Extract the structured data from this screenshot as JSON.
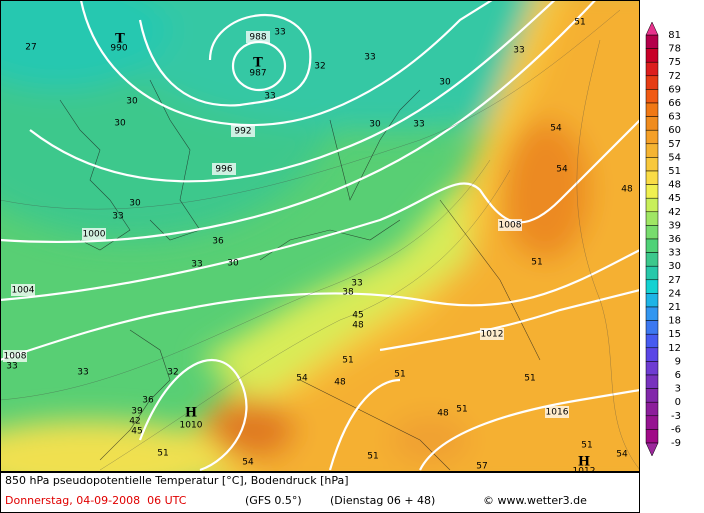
{
  "pressure_centers": [
    {
      "symbol": "T",
      "value": "990"
    },
    {
      "symbol": "T",
      "value": "987"
    },
    {
      "symbol": "H",
      "value": "1010"
    },
    {
      "symbol": "H",
      "value": "1012"
    }
  ],
  "isobar_labels": [
    "988",
    "992",
    "996",
    "1000",
    "1004",
    "1008",
    "1008",
    "1012",
    "1016"
  ],
  "contour_labels": [
    "27",
    "33",
    "33",
    "33",
    "33",
    "32",
    "30",
    "30",
    "30",
    "30",
    "33",
    "30",
    "33",
    "36",
    "33",
    "30",
    "33",
    "38",
    "45",
    "48",
    "33",
    "33",
    "32",
    "36",
    "39",
    "42",
    "45",
    "51",
    "54",
    "48",
    "51",
    "51",
    "51",
    "48",
    "51",
    "54",
    "54",
    "48",
    "51",
    "51",
    "54",
    "57",
    "54",
    "51",
    "51"
  ],
  "legend": {
    "labels": [
      "81",
      "78",
      "75",
      "72",
      "69",
      "66",
      "63",
      "60",
      "57",
      "54",
      "51",
      "48",
      "45",
      "42",
      "39",
      "36",
      "33",
      "30",
      "27",
      "24",
      "21",
      "18",
      "15",
      "12",
      "9",
      "6",
      "3",
      "0",
      "-3",
      "-6",
      "-9"
    ],
    "colors": [
      "#b4004b",
      "#c80028",
      "#dc1e1e",
      "#e63c14",
      "#f05a14",
      "#f07814",
      "#f08c1e",
      "#f5a028",
      "#f5b432",
      "#f8c83c",
      "#fadc46",
      "#f0f050",
      "#c8ef5a",
      "#a0e664",
      "#78dc6e",
      "#50d278",
      "#3cc88c",
      "#28c8aa",
      "#14d2d2",
      "#1eb4e6",
      "#3296f0",
      "#3c78f0",
      "#465af0",
      "#5a46e6",
      "#6e3cd2",
      "#7832be",
      "#8228aa",
      "#8c1e9b",
      "#961491",
      "#a00a87"
    ],
    "top_arrow_color": "#e6328c",
    "bottom_arrow_color": "#9b289b"
  },
  "footer": {
    "title": "850 hPa pseudopotentielle Temperatur [°C], Bodendruck [hPa]",
    "date": "Donnerstag, 04-09-2008  06 UTC",
    "model": "(GFS 0.5°)",
    "run": "(Dienstag 06 + 48)",
    "credit": "© www.wetter3.de"
  }
}
